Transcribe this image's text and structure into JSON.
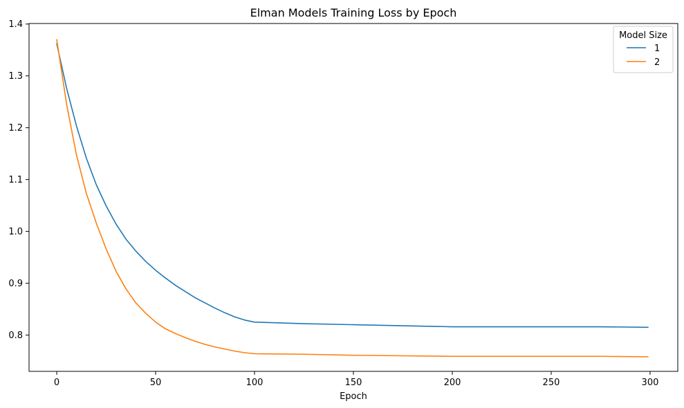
{
  "chart_data": {
    "type": "line",
    "title": "Elman Models Training Loss by Epoch",
    "xlabel": "Epoch",
    "ylabel": "",
    "xlim": [
      -14,
      314
    ],
    "ylim": [
      0.73,
      1.401
    ],
    "xticks": [
      0,
      50,
      100,
      150,
      200,
      250,
      300
    ],
    "yticks": [
      0.8,
      0.9,
      1.0,
      1.1,
      1.2,
      1.3,
      1.4
    ],
    "ytick_labels": [
      "0.8",
      "0.9",
      "1.0",
      "1.1",
      "1.2",
      "1.3",
      "1.4"
    ],
    "grid": false,
    "legend": {
      "title": "Model Size",
      "placement": "top-right"
    },
    "series": [
      {
        "name": "1",
        "color": "#1f77b4",
        "x": [
          0,
          5,
          10,
          15,
          20,
          25,
          30,
          35,
          40,
          45,
          50,
          55,
          60,
          65,
          70,
          75,
          80,
          85,
          90,
          95,
          100,
          125,
          150,
          175,
          200,
          225,
          250,
          275,
          299
        ],
        "y": [
          1.362,
          1.276,
          1.203,
          1.141,
          1.09,
          1.049,
          1.014,
          0.985,
          0.962,
          0.942,
          0.925,
          0.91,
          0.896,
          0.884,
          0.872,
          0.862,
          0.852,
          0.843,
          0.835,
          0.829,
          0.825,
          0.822,
          0.82,
          0.818,
          0.816,
          0.816,
          0.816,
          0.816,
          0.815
        ]
      },
      {
        "name": "2",
        "color": "#ff7f0e",
        "x": [
          0,
          5,
          10,
          15,
          20,
          25,
          30,
          35,
          40,
          45,
          50,
          55,
          60,
          65,
          70,
          75,
          80,
          85,
          90,
          95,
          100,
          125,
          150,
          175,
          200,
          225,
          250,
          275,
          299
        ],
        "y": [
          1.37,
          1.245,
          1.147,
          1.073,
          1.016,
          0.966,
          0.923,
          0.889,
          0.862,
          0.842,
          0.825,
          0.812,
          0.803,
          0.795,
          0.788,
          0.782,
          0.777,
          0.773,
          0.769,
          0.766,
          0.764,
          0.763,
          0.761,
          0.76,
          0.759,
          0.759,
          0.759,
          0.759,
          0.758
        ]
      }
    ]
  }
}
